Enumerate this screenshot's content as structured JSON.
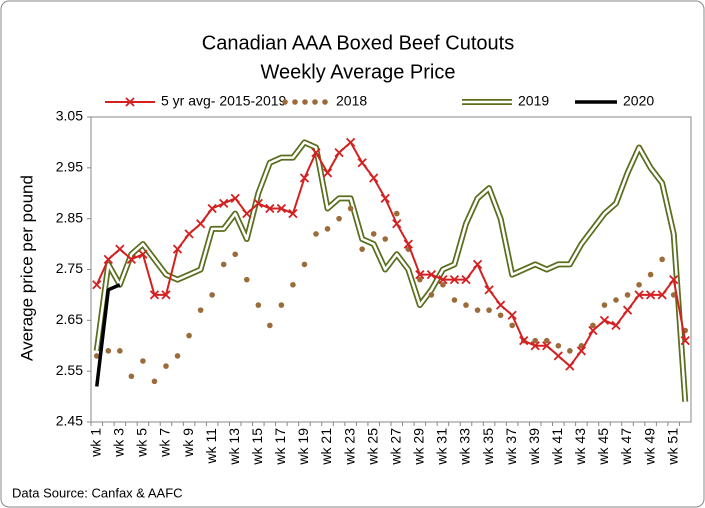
{
  "chart_data": {
    "type": "line",
    "title": "Canadian AAA Boxed Beef Cutouts",
    "subtitle": "Weekly Average Price",
    "y_label": "Average price per pound",
    "source": "Data Source: Canfax & AAFC",
    "categories": [
      "wk 1",
      null,
      "wk 3",
      null,
      "wk 5",
      null,
      "wk 7",
      null,
      "wk 9",
      null,
      "wk 11",
      null,
      "wk 13",
      null,
      "wk 15",
      null,
      "wk 17",
      null,
      "wk 19",
      null,
      "wk 21",
      null,
      "wk 23",
      null,
      "wk 25",
      null,
      "wk 27",
      null,
      "wk 29",
      null,
      "wk 31",
      null,
      "wk 33",
      null,
      "wk 35",
      null,
      "wk 37",
      null,
      "wk 39",
      null,
      "wk 41",
      null,
      "wk 43",
      null,
      "wk 45",
      null,
      "wk 47",
      null,
      "wk 49",
      null,
      "wk 51",
      null
    ],
    "ylim": [
      2.45,
      3.05
    ],
    "yticks": [
      2.45,
      2.55,
      2.65,
      2.75,
      2.85,
      2.95,
      3.05
    ],
    "series": [
      {
        "name": "5 yr avg- 2015-2019",
        "color": "#d42020",
        "style": "line-x",
        "values": [
          2.72,
          2.77,
          2.79,
          2.77,
          2.78,
          2.7,
          2.7,
          2.79,
          2.82,
          2.84,
          2.87,
          2.88,
          2.89,
          2.86,
          2.88,
          2.87,
          2.87,
          2.86,
          2.93,
          2.98,
          2.94,
          2.98,
          3.0,
          2.96,
          2.93,
          2.89,
          2.84,
          2.8,
          2.74,
          2.74,
          2.73,
          2.73,
          2.73,
          2.76,
          2.71,
          2.68,
          2.66,
          2.61,
          2.6,
          2.6,
          2.58,
          2.56,
          2.59,
          2.63,
          2.65,
          2.64,
          2.67,
          2.7,
          2.7,
          2.7,
          2.73,
          2.61
        ]
      },
      {
        "name": "2018",
        "color": "#9c6b3a",
        "style": "dots",
        "values": [
          2.58,
          2.59,
          2.59,
          2.54,
          2.57,
          2.53,
          2.56,
          2.58,
          2.62,
          2.67,
          2.7,
          2.76,
          2.78,
          2.73,
          2.68,
          2.64,
          2.68,
          2.72,
          2.76,
          2.82,
          2.83,
          2.85,
          2.87,
          2.79,
          2.82,
          2.81,
          2.86,
          2.79,
          2.73,
          2.7,
          2.72,
          2.69,
          2.68,
          2.67,
          2.67,
          2.66,
          2.64,
          2.61,
          2.61,
          2.61,
          2.6,
          2.59,
          2.6,
          2.64,
          2.68,
          2.69,
          2.7,
          2.72,
          2.74,
          2.77,
          2.7,
          2.63
        ]
      },
      {
        "name": "2019",
        "color": "#5a6e1e",
        "style": "double",
        "values": [
          2.59,
          2.76,
          2.72,
          2.78,
          2.8,
          2.77,
          2.74,
          2.73,
          2.74,
          2.75,
          2.83,
          2.83,
          2.86,
          2.81,
          2.9,
          2.96,
          2.97,
          2.97,
          3.0,
          2.99,
          2.87,
          2.89,
          2.89,
          2.81,
          2.8,
          2.75,
          2.78,
          2.75,
          2.68,
          2.71,
          2.75,
          2.76,
          2.84,
          2.89,
          2.91,
          2.85,
          2.74,
          2.75,
          2.76,
          2.75,
          2.76,
          2.76,
          2.8,
          2.83,
          2.86,
          2.88,
          2.94,
          2.99,
          2.95,
          2.92,
          2.82,
          2.49
        ]
      },
      {
        "name": "2020",
        "color": "#000000",
        "style": "line",
        "values": [
          2.52,
          2.71,
          2.72,
          null,
          null,
          null,
          null,
          null,
          null,
          null,
          null,
          null,
          null,
          null,
          null,
          null,
          null,
          null,
          null,
          null,
          null,
          null,
          null,
          null,
          null,
          null,
          null,
          null,
          null,
          null,
          null,
          null,
          null,
          null,
          null,
          null,
          null,
          null,
          null,
          null,
          null,
          null,
          null,
          null,
          null,
          null,
          null,
          null,
          null,
          null,
          null,
          null
        ]
      }
    ]
  }
}
